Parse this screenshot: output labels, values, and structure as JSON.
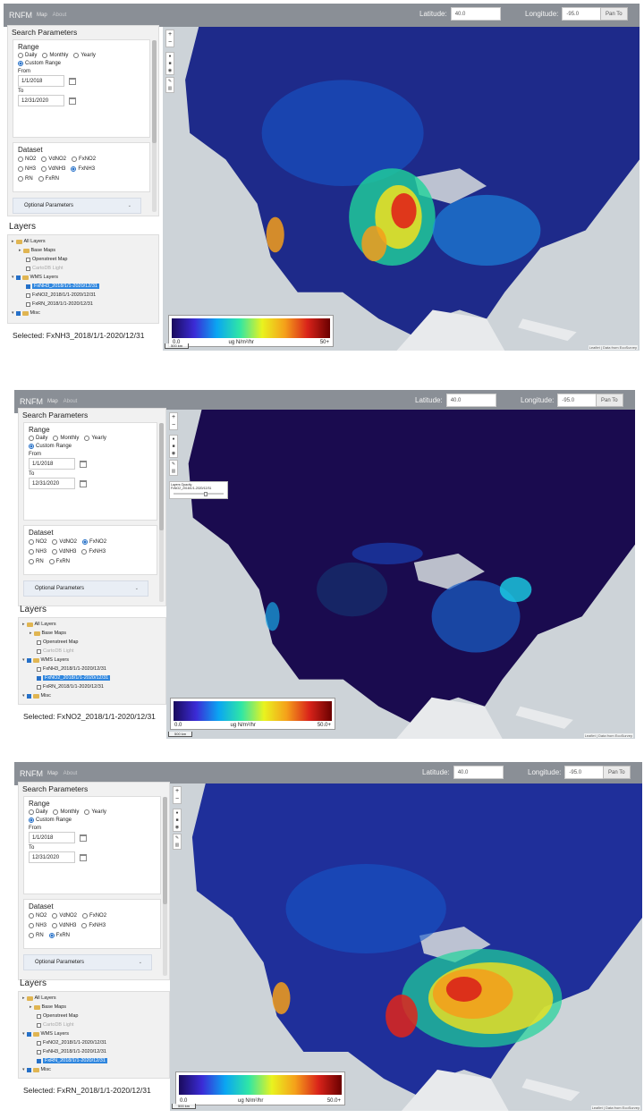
{
  "app": {
    "brand": "RNFM",
    "nav": [
      "Map",
      "About"
    ]
  },
  "coords": {
    "lat_label": "Latitude:",
    "lat_value": "40.0",
    "lon_label": "Longitude:",
    "lon_value": "-95.0",
    "pan_label": "Pan To"
  },
  "search": {
    "title": "Search Parameters"
  },
  "range": {
    "title": "Range",
    "options": [
      "Daily",
      "Monthly",
      "Yearly",
      "Custom Range"
    ],
    "selected": "Custom Range",
    "from_label": "From",
    "from_value": "1/1/2018",
    "to_label": "To",
    "to_value": "12/31/2020"
  },
  "dataset": {
    "title": "Dataset",
    "row1": [
      "NO2",
      "VdNO2",
      "FxNO2"
    ],
    "row2": [
      "NH3",
      "VdNH3",
      "FxNH3"
    ],
    "row3": [
      "RN",
      "FxRN"
    ]
  },
  "optional": {
    "label": "Optional Parameters"
  },
  "layers": {
    "title": "Layers",
    "all": "All Layers",
    "base": "Base Maps",
    "osm": "Openstreet Map",
    "carto": "CartoDB Light",
    "wms": "WMS Layers",
    "misc": "Misc"
  },
  "legend": {
    "min": "0.0",
    "unit": "ug N/m²/hr"
  },
  "map_ui": {
    "zoom_in": "+",
    "zoom_out": "−",
    "scale": "500 km",
    "attribution": "Leaflet | Data from EcoSurvey",
    "opacity_label": "Layers Opacity"
  },
  "panels": [
    {
      "dataset_selected": "FxNH3",
      "layer_order": [
        "FxNH3_2018/1/1-2020/12/31",
        "FxNO2_2018/1/1-2020/12/31",
        "FxRN_2018/1/1-2020/12/31"
      ],
      "selected_layer": "FxNH3_2018/1/1-2020/12/31",
      "selected_text": "Selected: FxNH3_2018/1/1-2020/12/31",
      "legend_max": "50+"
    },
    {
      "dataset_selected": "FxNO2",
      "layer_order": [
        "FxNH3_2018/1/1-2020/12/31",
        "FxNO2_2018/1/1-2020/12/31",
        "FxRN_2018/1/1-2020/12/31"
      ],
      "selected_layer": "FxNO2_2018/1/1-2020/12/31",
      "selected_text": "Selected: FxNO2_2018/1/1-2020/12/31",
      "legend_max": "50.0+",
      "opacity_layer": "FxNO2_2018/1/1-2020/12/31"
    },
    {
      "dataset_selected": "FxRN",
      "layer_order": [
        "FxNO2_2018/1/1-2020/12/31",
        "FxNH3_2018/1/1-2020/12/31",
        "FxRN_2018/1/1-2020/12/31"
      ],
      "selected_layer": "FxRN_2018/1/1-2020/12/31",
      "selected_text": "Selected: FxRN_2018/1/1-2020/12/31",
      "legend_max": "50.0+"
    }
  ]
}
